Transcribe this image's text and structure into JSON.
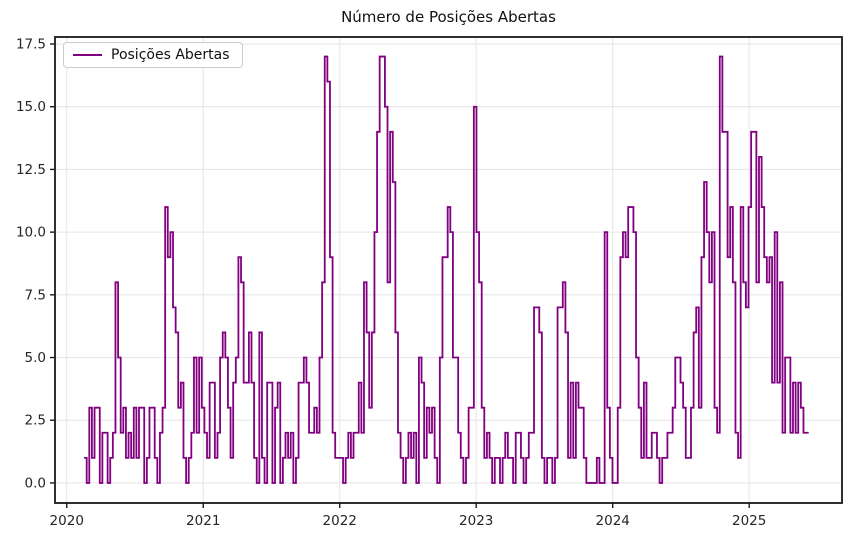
{
  "chart": {
    "title": "Número de Posições Abertas",
    "legend_label": "Posições Abertas"
  },
  "chart_data": {
    "type": "line",
    "line_style": "step-post",
    "title": "Número de Posições Abertas",
    "legend": {
      "entries": [
        "Posições Abertas"
      ],
      "position": "upper left"
    },
    "line_color": "#800080",
    "grid": true,
    "grid_color": "#e7e7e7",
    "background": "#ffffff",
    "xlabel": "",
    "ylabel": "",
    "x_axis": {
      "tick_labels": [
        "2020",
        "2021",
        "2022",
        "2023",
        "2024",
        "2025"
      ],
      "tick_values": [
        2020,
        2021,
        2022,
        2023,
        2024,
        2025
      ],
      "lim": [
        2019.914,
        2025.68
      ]
    },
    "y_axis": {
      "tick_labels": [
        "0.0",
        "2.5",
        "5.0",
        "7.5",
        "10.0",
        "12.5",
        "15.0",
        "17.5"
      ],
      "tick_values": [
        0,
        2.5,
        5,
        7.5,
        10,
        12.5,
        15,
        17.5
      ],
      "lim": [
        -0.8,
        17.78
      ]
    },
    "series": {
      "name": "Posições Abertas",
      "x_start_year": 2020.127,
      "x_step_years": 0.019166,
      "values": [
        1,
        0,
        3,
        1,
        3,
        3,
        0,
        2,
        2,
        0,
        1,
        2,
        8,
        5,
        2,
        3,
        1,
        2,
        1,
        3,
        1,
        3,
        3,
        0,
        1,
        3,
        3,
        1,
        0,
        2,
        3,
        11,
        9,
        10,
        7,
        6,
        3,
        4,
        1,
        0,
        1,
        2,
        5,
        2,
        5,
        3,
        2,
        1,
        4,
        4,
        1,
        2,
        5,
        6,
        5,
        3,
        1,
        4,
        5,
        9,
        8,
        4,
        4,
        6,
        4,
        1,
        0,
        6,
        1,
        0,
        4,
        4,
        0,
        3,
        4,
        0,
        1,
        2,
        1,
        2,
        0,
        1,
        4,
        4,
        5,
        4,
        2,
        2,
        3,
        2,
        5,
        8,
        17,
        16,
        9,
        2,
        1,
        1,
        1,
        0,
        1,
        2,
        1,
        2,
        2,
        4,
        2,
        8,
        6,
        3,
        6,
        10,
        14,
        17,
        17,
        15,
        8,
        14,
        12,
        6,
        2,
        1,
        0,
        1,
        2,
        1,
        2,
        0,
        5,
        4,
        1,
        3,
        2,
        3,
        1,
        0,
        5,
        9,
        9,
        11,
        10,
        5,
        5,
        2,
        1,
        0,
        1,
        3,
        3,
        15,
        10,
        8,
        3,
        1,
        2,
        1,
        0,
        1,
        1,
        0,
        1,
        2,
        1,
        1,
        0,
        2,
        2,
        1,
        0,
        1,
        2,
        2,
        7,
        7,
        6,
        1,
        0,
        1,
        1,
        0,
        1,
        7,
        7,
        8,
        6,
        1,
        4,
        1,
        4,
        3,
        3,
        1,
        0,
        0,
        0,
        0,
        1,
        0,
        0,
        10,
        3,
        1,
        0,
        0,
        3,
        9,
        10,
        9,
        11,
        11,
        10,
        5,
        3,
        1,
        4,
        1,
        1,
        2,
        2,
        1,
        0,
        1,
        1,
        2,
        2,
        3,
        5,
        5,
        4,
        3,
        1,
        1,
        3,
        6,
        7,
        3,
        9,
        12,
        10,
        8,
        10,
        3,
        2,
        17,
        14,
        14,
        9,
        11,
        8,
        2,
        1,
        11,
        8,
        7,
        11,
        14,
        14,
        8,
        13,
        11,
        9,
        8,
        9,
        4,
        10,
        4,
        8,
        2,
        5,
        5,
        2,
        4,
        2,
        4,
        3,
        2,
        2
      ]
    }
  }
}
